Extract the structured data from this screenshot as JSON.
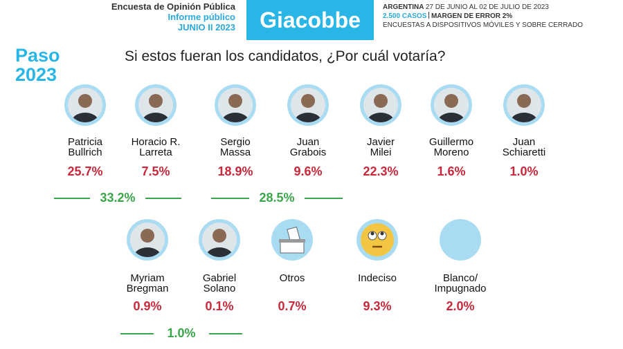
{
  "header": {
    "title": "Encuesta de Opinión Pública",
    "subtitle": "Informe público",
    "edition": "JUNIO II 2023",
    "brand": "Giacobbe",
    "country": "ARGENTINA",
    "dates": "27 DE JUNIO AL 02 DE JULIO DE 2023",
    "cases": "2.500 CASOS",
    "margin": "MARGEN DE ERROR 2%",
    "method": "ENCUESTAS A DISPOSITIVOS MÓVILES Y SOBRE CERRADO"
  },
  "badge": {
    "line1": "Paso",
    "line2": "2023"
  },
  "question": "Si estos fueran los candidatos, ¿Por cuál votaría?",
  "candidates": [
    {
      "name": [
        "Patricia",
        "Bullrich"
      ],
      "result": "25.7%"
    },
    {
      "name": [
        "Horacio R.",
        "Larreta"
      ],
      "result": "7.5%"
    },
    {
      "name": [
        "Sergio",
        "Massa"
      ],
      "result": "18.9%"
    },
    {
      "name": [
        "Juan",
        "Grabois"
      ],
      "result": "9.6%"
    },
    {
      "name": [
        "Javier",
        "Milei"
      ],
      "result": "22.3%"
    },
    {
      "name": [
        "Guillermo",
        "Moreno"
      ],
      "result": "1.6%"
    },
    {
      "name": [
        "Juan",
        "Schiaretti"
      ],
      "result": "1.0%"
    },
    {
      "name": [
        "Myriam",
        "Bregman"
      ],
      "result": "0.9%"
    },
    {
      "name": [
        "Gabriel",
        "Solano"
      ],
      "result": "0.1%"
    },
    {
      "name": [
        "Otros"
      ],
      "result": "0.7%"
    },
    {
      "name": [
        "Indeciso"
      ],
      "result": "9.3%"
    },
    {
      "name": [
        "Blanco/",
        "Impugnado"
      ],
      "result": "2.0%"
    }
  ],
  "groups": [
    {
      "total": "33.2%"
    },
    {
      "total": "28.5%"
    },
    {
      "total": "1.0%"
    }
  ]
}
